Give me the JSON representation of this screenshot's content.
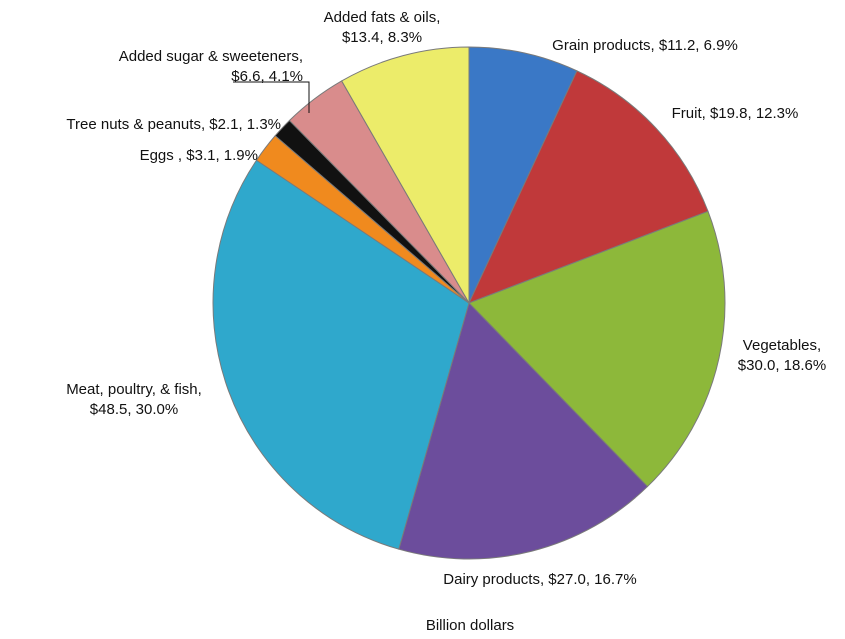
{
  "chart_data": {
    "type": "pie",
    "title": "",
    "caption": "Billion dollars",
    "slices": [
      {
        "name": "Grain products",
        "value": 11.2,
        "percent": 6.9,
        "color": "#3a78c6",
        "label_lines": [
          "Grain products, $11.2, 6.9%"
        ]
      },
      {
        "name": "Fruit",
        "value": 19.8,
        "percent": 12.3,
        "color": "#c0393a",
        "label_lines": [
          "Fruit, $19.8, 12.3%"
        ]
      },
      {
        "name": "Vegetables",
        "value": 30.0,
        "percent": 18.6,
        "color": "#8db83a",
        "label_lines": [
          "Vegetables,",
          "$30.0, 18.6%"
        ]
      },
      {
        "name": "Dairy products",
        "value": 27.0,
        "percent": 16.7,
        "color": "#6c4d9c",
        "label_lines": [
          "Dairy products, $27.0, 16.7%"
        ]
      },
      {
        "name": "Meat, poultry, & fish",
        "value": 48.5,
        "percent": 30.0,
        "color": "#2fa8cc",
        "label_lines": [
          "Meat, poultry, & fish,",
          "$48.5, 30.0%"
        ]
      },
      {
        "name": "Eggs",
        "value": 3.1,
        "percent": 1.9,
        "color": "#f08a1e",
        "label_lines": [
          "Eggs , $3.1, 1.9%"
        ]
      },
      {
        "name": "Tree nuts & peanuts",
        "value": 2.1,
        "percent": 1.3,
        "color": "#111111",
        "label_lines": [
          "Tree nuts & peanuts, $2.1, 1.3%"
        ]
      },
      {
        "name": "Added sugar & sweeteners",
        "value": 6.6,
        "percent": 4.1,
        "color": "#d98c8c",
        "label_lines": [
          "Added sugar & sweeteners,",
          "$6.6, 4.1%"
        ]
      },
      {
        "name": "Added fats & oils",
        "value": 13.4,
        "percent": 8.3,
        "color": "#ecec6a",
        "label_lines": [
          "Added fats & oils,",
          "$13.4, 8.3%"
        ]
      }
    ]
  }
}
